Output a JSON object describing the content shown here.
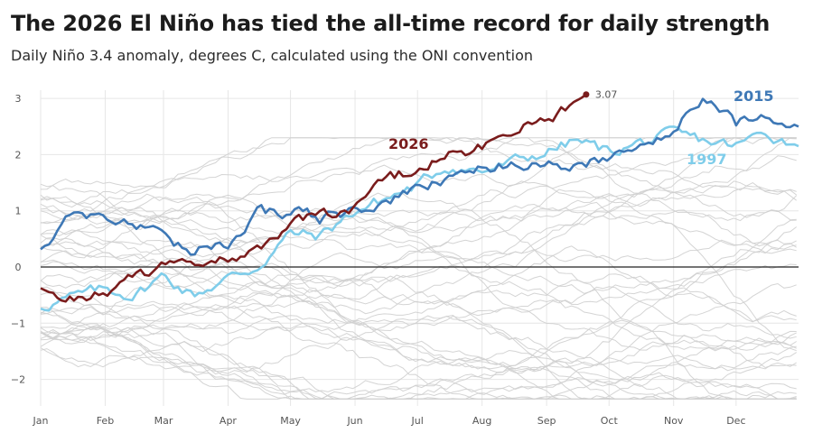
{
  "header": {
    "title": "The 2026 El Niño has tied the all-time record for daily strength",
    "subtitle": "Daily Niño 3.4 anomaly, degrees C, calculated using the ONI convention"
  },
  "colors": {
    "y2026": "#7a1c1c",
    "y2015": "#3e78b6",
    "y1997": "#7fcdea",
    "background_years": "#cfcfcf",
    "zero_line": "#222222",
    "grid": "#e6e6e6"
  },
  "chart_data": {
    "type": "line",
    "title": "The 2026 El Niño has tied the all-time record for daily strength",
    "subtitle": "Daily Niño 3.4 anomaly, degrees C, calculated using the ONI convention",
    "xlabel": "",
    "ylabel": "",
    "x_ticks": [
      "Jan",
      "Feb",
      "Mar",
      "Apr",
      "May",
      "Jun",
      "Jul",
      "Aug",
      "Sep",
      "Oct",
      "Nov",
      "Dec"
    ],
    "y_ticks": [
      -2,
      -1,
      0,
      1,
      2,
      3
    ],
    "ylim": [
      -2.4,
      3.1
    ],
    "grid": true,
    "annotations": [
      {
        "text": "3.07",
        "x": "Sep 20",
        "y": 3.07
      }
    ],
    "highlighted_series": [
      {
        "name": "2026",
        "color": "#7a1c1c",
        "x": [
          "Jan 1",
          "Jan 15",
          "Feb 1",
          "Feb 15",
          "Mar 1",
          "Mar 15",
          "Apr 1",
          "Apr 15",
          "May 1",
          "May 15",
          "Jun 1",
          "Jun 15",
          "Jul 1",
          "Jul 15",
          "Aug 1",
          "Aug 15",
          "Sep 1",
          "Sep 10",
          "Sep 20"
        ],
        "values": [
          -0.45,
          -0.55,
          -0.45,
          -0.2,
          0.0,
          0.05,
          0.15,
          0.3,
          0.7,
          0.95,
          1.0,
          1.5,
          1.75,
          1.95,
          2.15,
          2.45,
          2.65,
          2.8,
          3.07
        ]
      },
      {
        "name": "2015",
        "color": "#3e78b6",
        "x": [
          "Jan 1",
          "Jan 15",
          "Feb 1",
          "Feb 15",
          "Mar 1",
          "Mar 15",
          "Apr 1",
          "Apr 15",
          "May 1",
          "May 15",
          "Jun 1",
          "Jun 15",
          "Jul 1",
          "Jul 15",
          "Aug 1",
          "Aug 15",
          "Sep 1",
          "Sep 15",
          "Oct 1",
          "Oct 15",
          "Nov 1",
          "Nov 15",
          "Dec 1",
          "Dec 15",
          "Dec 31"
        ],
        "values": [
          0.3,
          0.95,
          0.9,
          0.75,
          0.5,
          0.25,
          0.45,
          0.95,
          1.0,
          0.85,
          1.0,
          1.15,
          1.35,
          1.55,
          1.75,
          1.85,
          1.9,
          1.75,
          2.0,
          2.25,
          2.45,
          3.0,
          2.55,
          2.75,
          2.5
        ]
      },
      {
        "name": "1997",
        "color": "#7fcdea",
        "x": [
          "Jan 1",
          "Jan 15",
          "Feb 1",
          "Feb 15",
          "Mar 1",
          "Mar 15",
          "Apr 1",
          "Apr 15",
          "May 1",
          "May 15",
          "Jun 1",
          "Jun 15",
          "Jul 1",
          "Jul 15",
          "Aug 1",
          "Aug 15",
          "Sep 1",
          "Sep 15",
          "Oct 1",
          "Oct 15",
          "Nov 1",
          "Nov 15",
          "Dec 1",
          "Dec 15",
          "Dec 31"
        ],
        "values": [
          -0.7,
          -0.55,
          -0.4,
          -0.5,
          -0.15,
          -0.5,
          -0.2,
          0.0,
          0.6,
          0.55,
          1.0,
          1.2,
          1.45,
          1.8,
          1.7,
          1.85,
          2.05,
          2.25,
          2.05,
          2.2,
          2.35,
          2.25,
          2.15,
          2.4,
          2.15
        ]
      }
    ],
    "background_series_count": 40
  }
}
